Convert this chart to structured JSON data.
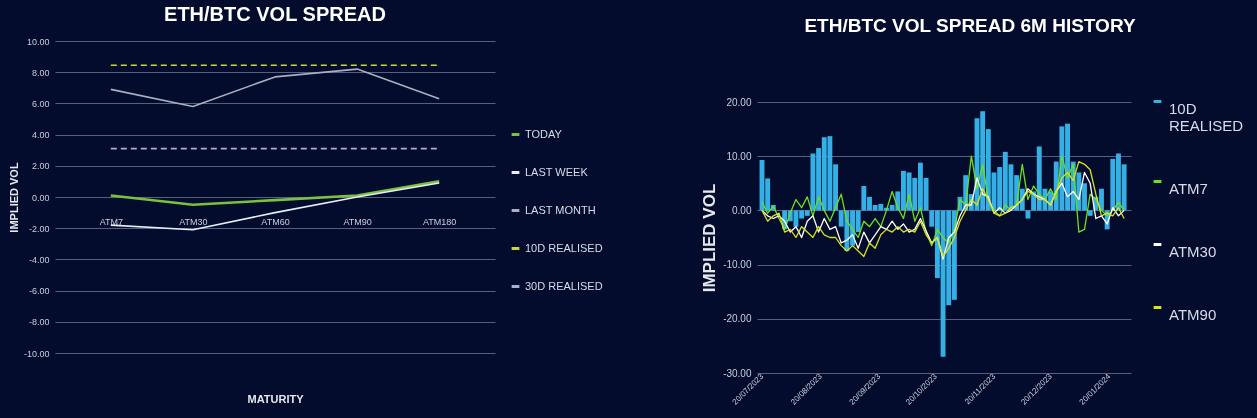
{
  "chart_data": [
    {
      "type": "line",
      "title": "ETH/BTC VOL SPREAD",
      "xlabel": "MATURITY",
      "ylabel": "IMPLIED VOL",
      "categories": [
        "ATM7",
        "ATM30",
        "ATM60",
        "ATM90",
        "ATM180"
      ],
      "series": [
        {
          "name": "TODAY",
          "color": "#7ac143",
          "values": [
            0.1,
            -0.5,
            -0.2,
            0.1,
            1.0
          ]
        },
        {
          "name": "LAST WEEK",
          "color": "#e8ecf4",
          "values": [
            -1.8,
            -2.1,
            -1.0,
            0.0,
            0.9
          ]
        },
        {
          "name": "LAST MONTH",
          "color": "#a9b0c4",
          "values": [
            6.9,
            5.8,
            7.7,
            8.2,
            6.3
          ]
        },
        {
          "name": "10D REALISED",
          "color": "#c6d64a",
          "line_style": "dashed",
          "values": [
            8.45,
            8.45,
            8.45,
            8.45,
            8.45
          ]
        },
        {
          "name": "30D REALISED",
          "color": "#a9b0d8",
          "line_style": "dashed",
          "values": [
            3.1,
            3.1,
            3.1,
            3.1,
            3.1
          ]
        }
      ],
      "ylim": [
        -10,
        10
      ],
      "yticks": [
        {
          "value": -10,
          "label": "-10.00"
        },
        {
          "value": -8,
          "label": "-8.00"
        },
        {
          "value": -6,
          "label": "-6.00"
        },
        {
          "value": -4,
          "label": "-4.00"
        },
        {
          "value": -2,
          "label": "-2.00"
        },
        {
          "value": 0,
          "label": "0.00"
        },
        {
          "value": 2,
          "label": "2.00"
        },
        {
          "value": 4,
          "label": "4.00"
        },
        {
          "value": 6,
          "label": "6.00"
        },
        {
          "value": 8,
          "label": "8.00"
        },
        {
          "value": 10,
          "label": "10.00"
        }
      ],
      "grid": "y",
      "legend": "right"
    },
    {
      "type": "line",
      "title": "ETH/BTC VOL SPREAD 6M HISTORY",
      "ylabel": "IMPLIED VOL",
      "x": [
        "2023-07-20",
        "2023-07-23",
        "2023-07-26",
        "2023-07-29",
        "2023-08-01",
        "2023-08-04",
        "2023-08-07",
        "2023-08-10",
        "2023-08-13",
        "2023-08-16",
        "2023-08-19",
        "2023-08-22",
        "2023-08-25",
        "2023-08-28",
        "2023-08-31",
        "2023-09-03",
        "2023-09-06",
        "2023-09-09",
        "2023-09-12",
        "2023-09-15",
        "2023-09-18",
        "2023-09-21",
        "2023-09-24",
        "2023-09-27",
        "2023-09-30",
        "2023-10-03",
        "2023-10-06",
        "2023-10-09",
        "2023-10-12",
        "2023-10-15",
        "2023-10-18",
        "2023-10-21",
        "2023-10-24",
        "2023-10-27",
        "2023-10-30",
        "2023-11-02",
        "2023-11-05",
        "2023-11-08",
        "2023-11-11",
        "2023-11-14",
        "2023-11-17",
        "2023-11-20",
        "2023-11-23",
        "2023-11-26",
        "2023-11-29",
        "2023-12-02",
        "2023-12-05",
        "2023-12-08",
        "2023-12-11",
        "2023-12-14",
        "2023-12-17",
        "2023-12-20",
        "2023-12-23",
        "2023-12-26",
        "2023-12-29",
        "2024-01-01",
        "2024-01-04",
        "2024-01-07",
        "2024-01-10",
        "2024-01-13",
        "2024-01-16",
        "2024-01-19",
        "2024-01-22",
        "2024-01-25",
        "2024-01-28"
      ],
      "series": [
        {
          "name": "10D REALISED",
          "type": "bar",
          "color": "#35b0e6",
          "values": [
            9.3,
            5.9,
            1.0,
            null,
            -3.5,
            -2.0,
            -3.0,
            -1.5,
            -1.0,
            10.5,
            11.5,
            13.5,
            13.7,
            8.5,
            -3.0,
            -7.5,
            -6.5,
            -4.0,
            4.5,
            2.5,
            1.0,
            1.2,
            0.5,
            1.0,
            3.5,
            7.3,
            7.0,
            6.0,
            8.8,
            6.0,
            -3.0,
            -12.5,
            -27.0,
            -17.5,
            -16.5,
            2.5,
            6.5,
            3.0,
            17.0,
            18.3,
            15.0,
            7.0,
            8.0,
            10.8,
            8.5,
            6.5,
            4.0,
            -1.5,
            3.5,
            11.8,
            4.0,
            3.5,
            9.0,
            15.5,
            16.0,
            9.0,
            7.0,
            5.0,
            -1.0,
            2.5,
            4.0,
            -3.5,
            9.5,
            10.5,
            8.5
          ]
        },
        {
          "name": "ATM7",
          "color": "#6fe01c",
          "values": [
            1.5,
            -0.5,
            0.8,
            -1.5,
            -3.5,
            -0.5,
            2.0,
            0.5,
            2.5,
            -1.0,
            2.5,
            0.0,
            -2.0,
            0.5,
            3.0,
            -2.0,
            -3.5,
            -5.0,
            -2.0,
            -3.0,
            -1.5,
            -3.0,
            0.0,
            3.5,
            0.5,
            -1.5,
            3.0,
            -2.0,
            0.5,
            -4.0,
            -6.5,
            -3.5,
            -5.0,
            -6.0,
            -3.5,
            2.0,
            1.0,
            10.0,
            4.0,
            8.5,
            2.0,
            0.0,
            -1.0,
            1.0,
            0.0,
            1.0,
            8.5,
            2.0,
            4.5,
            3.0,
            2.0,
            4.0,
            2.0,
            10.0,
            6.0,
            8.5,
            -4.0,
            -3.5,
            3.0,
            2.0,
            0.0,
            -1.0,
            0.0,
            1.5,
            0.0
          ]
        },
        {
          "name": "ATM30",
          "color": "#ffffff",
          "values": [
            0.0,
            -1.0,
            -1.5,
            -1.0,
            -2.0,
            -4.0,
            -3.0,
            -5.0,
            -2.0,
            -1.0,
            -4.0,
            -1.5,
            -3.5,
            -3.0,
            -6.0,
            -5.5,
            -4.5,
            -7.0,
            -4.0,
            -6.0,
            -4.5,
            -3.0,
            -3.5,
            -2.0,
            -3.5,
            -2.5,
            -4.0,
            -3.5,
            -1.5,
            null,
            -6.0,
            -5.0,
            -9.0,
            -5.0,
            -4.0,
            -1.0,
            1.0,
            1.0,
            6.0,
            3.0,
            2.5,
            -0.5,
            0.5,
            -0.5,
            0.0,
            1.0,
            2.0,
            4.0,
            3.0,
            2.5,
            2.0,
            1.0,
            3.5,
            5.0,
            2.5,
            3.5,
            2.0,
            7.0,
            5.0,
            -1.5,
            -1.0,
            -2.5,
            0.5,
            -1.0,
            0.0
          ]
        },
        {
          "name": "ATM90",
          "color": "#d8e21a",
          "values": [
            0.0,
            -2.0,
            -1.0,
            -0.5,
            -4.0,
            -3.5,
            -5.0,
            -3.0,
            -4.0,
            -5.0,
            -3.0,
            -4.5,
            -5.0,
            -5.0,
            -6.5,
            -7.5,
            -6.5,
            -7.5,
            -8.5,
            -6.0,
            -7.0,
            -4.5,
            -3.5,
            -4.0,
            -3.0,
            -4.0,
            -3.5,
            -4.0,
            -2.0,
            -4.5,
            -6.0,
            -5.0,
            -8.5,
            -7.0,
            -5.0,
            -2.0,
            0.0,
            2.0,
            1.0,
            4.0,
            2.0,
            -0.5,
            -1.0,
            -0.5,
            0.5,
            1.0,
            2.0,
            3.5,
            3.0,
            2.0,
            2.0,
            1.0,
            3.5,
            6.0,
            7.0,
            5.5,
            9.0,
            8.5,
            7.5,
            3.0,
            -1.0,
            -0.5,
            -1.0,
            0.5,
            -1.5
          ]
        }
      ],
      "xlim": [
        "2023-07-20",
        "2024-01-29"
      ],
      "xticks": [
        {
          "value": "2023-07-20",
          "label": "20/07/2023"
        },
        {
          "value": "2023-08-20",
          "label": "20/08/2023"
        },
        {
          "value": "2023-09-20",
          "label": "20/09/2023"
        },
        {
          "value": "2023-10-20",
          "label": "20/10/2023"
        },
        {
          "value": "2023-11-20",
          "label": "20/11/2023"
        },
        {
          "value": "2023-12-20",
          "label": "20/12/2023"
        },
        {
          "value": "2024-01-20",
          "label": "20/01/2024"
        }
      ],
      "ylim": [
        -30,
        20
      ],
      "yticks": [
        {
          "value": -30,
          "label": "-30.00"
        },
        {
          "value": -20,
          "label": "-20.00"
        },
        {
          "value": -10,
          "label": "-10.00"
        },
        {
          "value": 0,
          "label": "0.00"
        },
        {
          "value": 10,
          "label": "10.00"
        },
        {
          "value": 20,
          "label": "20.00"
        }
      ],
      "grid": "y",
      "legend": "right"
    }
  ]
}
